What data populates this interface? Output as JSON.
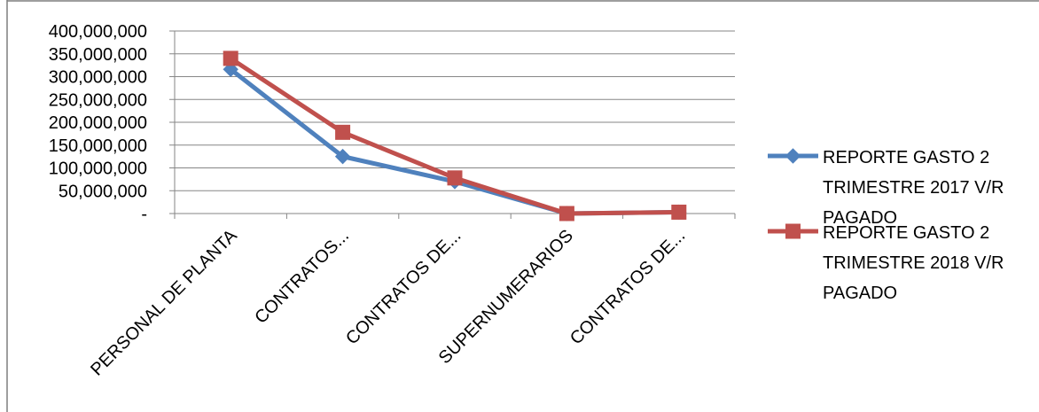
{
  "chart_data": {
    "type": "line",
    "categories": [
      "PERSONAL DE PLANTA",
      "CONTRATOS...",
      "CONTRATOS DE...",
      "SUPERNUMERARIOS",
      "CONTRATOS DE..."
    ],
    "series": [
      {
        "name": "REPORTE GASTO 2 TRIMESTRE 2017 V/R PAGADO",
        "legend_lines": [
          "REPORTE GASTO 2",
          "TRIMESTRE 2017 V/R",
          "PAGADO"
        ],
        "color": "#4F81BD",
        "marker": "diamond",
        "values": [
          316000000,
          125000000,
          70000000,
          0,
          3000000
        ]
      },
      {
        "name": "REPORTE GASTO 2 TRIMESTRE 2018 V/R PAGADO",
        "legend_lines": [
          "REPORTE GASTO 2",
          "TRIMESTRE 2018 V/R",
          "PAGADO"
        ],
        "color": "#C0504D",
        "marker": "square",
        "values": [
          340000000,
          178000000,
          78000000,
          0,
          3000000
        ]
      }
    ],
    "ylim": [
      0,
      400000000
    ],
    "yticks": [
      0,
      50000000,
      100000000,
      150000000,
      200000000,
      250000000,
      300000000,
      350000000,
      400000000
    ],
    "ytick_labels": [
      "-",
      "50,000,000",
      "100,000,000",
      "150,000,000",
      "200,000,000",
      "250,000,000",
      "300,000,000",
      "350,000,000",
      "400,000,000"
    ],
    "grid": true,
    "legend": "right",
    "title": "",
    "xlabel": "",
    "ylabel": ""
  }
}
